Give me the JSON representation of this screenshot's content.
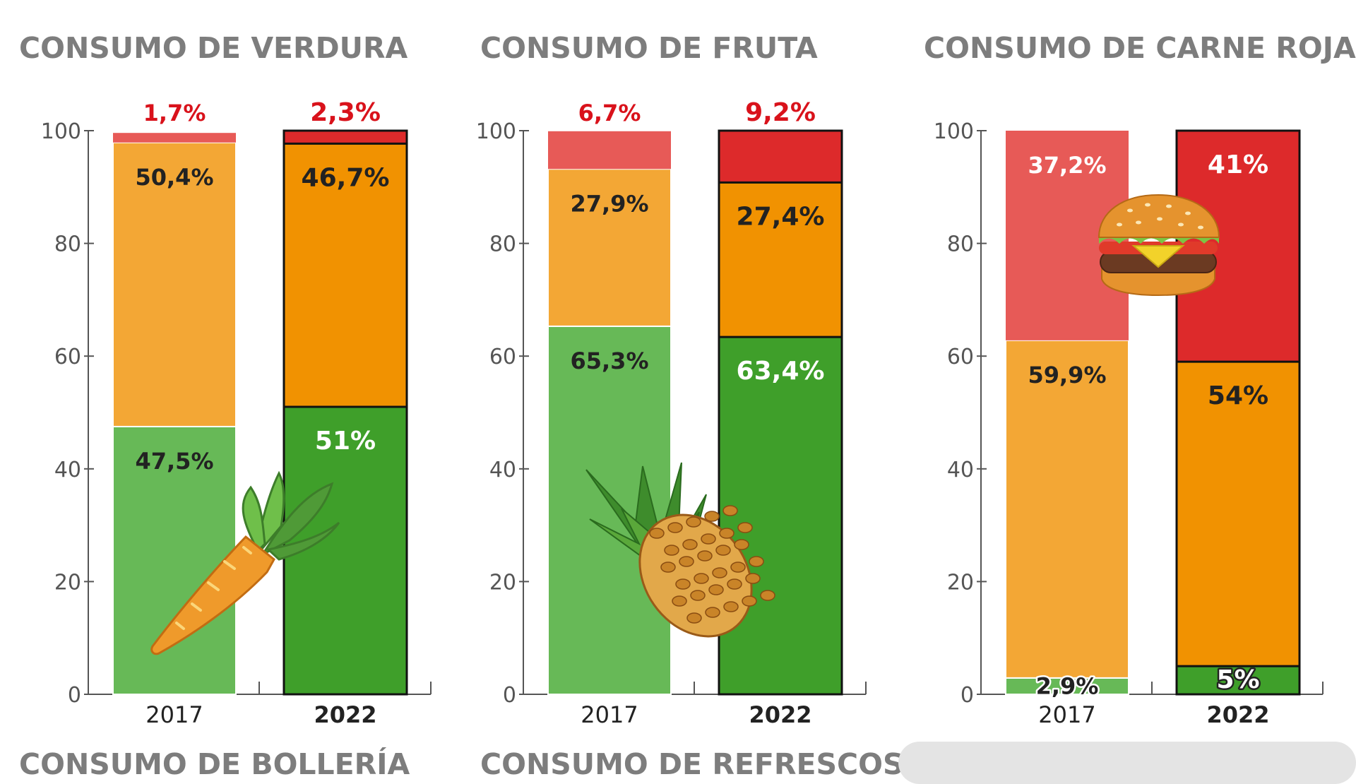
{
  "colors": {
    "red_light": "#e75a57",
    "red_dark": "#dd2a2b",
    "orange_light": "#f3a735",
    "orange_dark": "#f19201",
    "green_light": "#67b957",
    "green_dark": "#3f9f2a",
    "title_gray": "#7d7d7d",
    "axis_gray": "#555555",
    "red_label": "#d9121b",
    "dark_text": "#222222"
  },
  "chart_data": [
    {
      "type": "bar",
      "stacked": true,
      "title": "CONSUMO DE VERDURA",
      "categories": [
        "2017",
        "2022"
      ],
      "series": [
        {
          "values": [
            47.5,
            51
          ],
          "labels": [
            "47,5%",
            "51%"
          ]
        },
        {
          "values": [
            50.4,
            46.7
          ],
          "labels": [
            "50,4%",
            "46,7%"
          ]
        },
        {
          "values": [
            1.7,
            2.3
          ],
          "labels": [
            "1,7%",
            "2,3%"
          ]
        }
      ],
      "ylim": [
        0,
        100
      ],
      "yticks": [
        0,
        20,
        40,
        60,
        80,
        100
      ],
      "illustration": "carrot-icon"
    },
    {
      "type": "bar",
      "stacked": true,
      "title": "CONSUMO DE FRUTA",
      "categories": [
        "2017",
        "2022"
      ],
      "series": [
        {
          "values": [
            65.3,
            63.4
          ],
          "labels": [
            "65,3%",
            "63,4%"
          ]
        },
        {
          "values": [
            27.9,
            27.4
          ],
          "labels": [
            "27,9%",
            "27,4%"
          ]
        },
        {
          "values": [
            6.7,
            9.2
          ],
          "labels": [
            "6,7%",
            "9,2%"
          ]
        }
      ],
      "ylim": [
        0,
        100
      ],
      "yticks": [
        0,
        20,
        40,
        60,
        80,
        100
      ],
      "illustration": "pineapple-icon"
    },
    {
      "type": "bar",
      "stacked": true,
      "title": "CONSUMO DE CARNE ROJA",
      "categories": [
        "2017",
        "2022"
      ],
      "series": [
        {
          "values": [
            2.9,
            5
          ],
          "labels": [
            "2,9%",
            "5%"
          ]
        },
        {
          "values": [
            59.9,
            54
          ],
          "labels": [
            "59,9%",
            "54%"
          ]
        },
        {
          "values": [
            37.2,
            41
          ],
          "labels": [
            "37,2%",
            "41%"
          ]
        }
      ],
      "ylim": [
        0,
        100
      ],
      "yticks": [
        0,
        20,
        40,
        60,
        80,
        100
      ],
      "illustration": "hamburger-icon"
    }
  ],
  "bottom_titles": [
    "CONSUMO DE BOLLERÍA",
    "CONSUMO DE REFRESCOS"
  ]
}
